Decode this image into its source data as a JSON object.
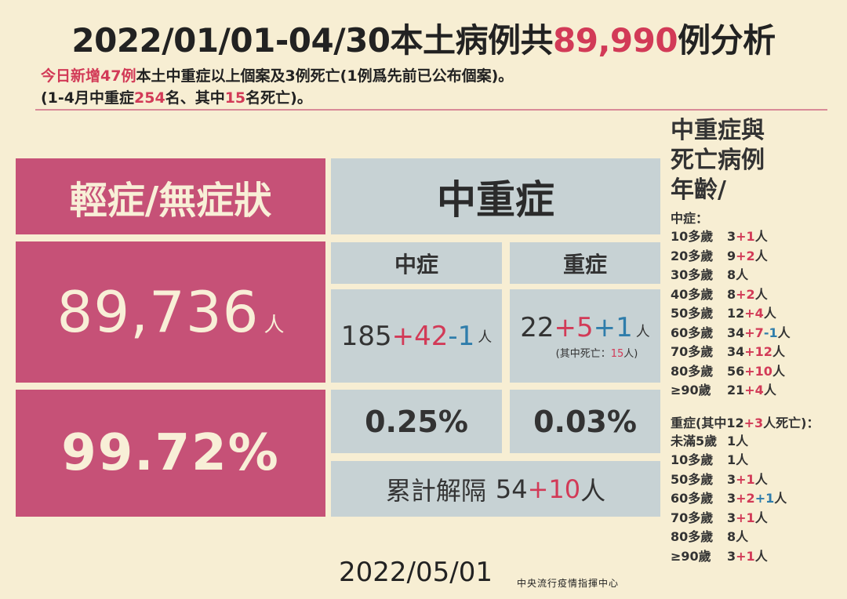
{
  "title": {
    "prefix": "2022/01/01-04/30本土病例共",
    "total": "89,990",
    "suffix": "例分析"
  },
  "subtitle": {
    "line1_red": "今日新增47例",
    "line1_rest": "本土中重症以上個案及3例死亡(1例爲先前已公布個案)。",
    "line2_a": "(1-4月中重症",
    "line2_b": "254",
    "line2_c": "名、其中",
    "line2_d": "15",
    "line2_e": "名死亡)。"
  },
  "mild": {
    "header": "輕症/無症狀",
    "count": "89,736",
    "unit": "人",
    "percent": "99.72%"
  },
  "severe": {
    "header": "中重症",
    "moderate_label": "中症",
    "critical_label": "重症",
    "moderate_base": "185",
    "moderate_add": "+42",
    "moderate_sub": "-1",
    "critical_base": "22",
    "critical_add": "+5",
    "critical_add2": "+1",
    "unit": "人",
    "death_note_a": "(其中死亡：",
    "death_note_b": "15",
    "death_note_c": "人)",
    "moderate_percent": "0.25%",
    "critical_percent": "0.03%",
    "isolation_label": "累計解隔",
    "isolation_base": "54",
    "isolation_add": "+10",
    "isolation_unit": "人"
  },
  "age_panel": {
    "heading_line1": "中重症與",
    "heading_line2": "死亡病例",
    "heading_line3": "年齡/",
    "moderate_title": "中症：",
    "moderate_rows": [
      {
        "label": "10多歲",
        "base": "3",
        "add": "+1",
        "extra": "",
        "unit": "人"
      },
      {
        "label": "20多歲",
        "base": "9",
        "add": "+2",
        "extra": "",
        "unit": "人"
      },
      {
        "label": "30多歲",
        "base": "8",
        "add": "",
        "extra": "",
        "unit": "人"
      },
      {
        "label": "40多歲",
        "base": "8",
        "add": "+2",
        "extra": "",
        "unit": "人"
      },
      {
        "label": "50多歲",
        "base": "12",
        "add": "+4",
        "extra": "",
        "unit": "人"
      },
      {
        "label": "60多歲",
        "base": "34",
        "add": "+7",
        "extra": "-1",
        "unit": "人"
      },
      {
        "label": "70多歲",
        "base": "34",
        "add": "+12",
        "extra": "",
        "unit": "人"
      },
      {
        "label": "80多歲",
        "base": "56",
        "add": "+10",
        "extra": "",
        "unit": "人"
      },
      {
        "label": "≥90歲",
        "base": "21",
        "add": "+4",
        "extra": "",
        "unit": "人"
      }
    ],
    "critical_title_a": "重症(其中12",
    "critical_title_b": "+3",
    "critical_title_c": "人死亡)：",
    "critical_rows": [
      {
        "label": "未滿5歲",
        "base": "1",
        "add": "",
        "extra": "",
        "unit": "人"
      },
      {
        "label": "10多歲",
        "base": "1",
        "add": "",
        "extra": "",
        "unit": "人"
      },
      {
        "label": "50多歲",
        "base": "3",
        "add": "+1",
        "extra": "",
        "unit": "人"
      },
      {
        "label": "60多歲",
        "base": "3",
        "add": "+2",
        "extra": "+1",
        "unit": "人"
      },
      {
        "label": "70多歲",
        "base": "3",
        "add": "+1",
        "extra": "",
        "unit": "人"
      },
      {
        "label": "80多歲",
        "base": "8",
        "add": "",
        "extra": "",
        "unit": "人"
      },
      {
        "label": "≥90歲",
        "base": "3",
        "add": "+1",
        "extra": "",
        "unit": "人"
      }
    ]
  },
  "footer": {
    "date": "2022/05/01",
    "org": "中央流行疫情指揮中心"
  },
  "colors": {
    "background": "#f7eed3",
    "pink": "#c65177",
    "gray": "#c7d2d4",
    "red": "#d23a57",
    "blue": "#2f7dab"
  }
}
